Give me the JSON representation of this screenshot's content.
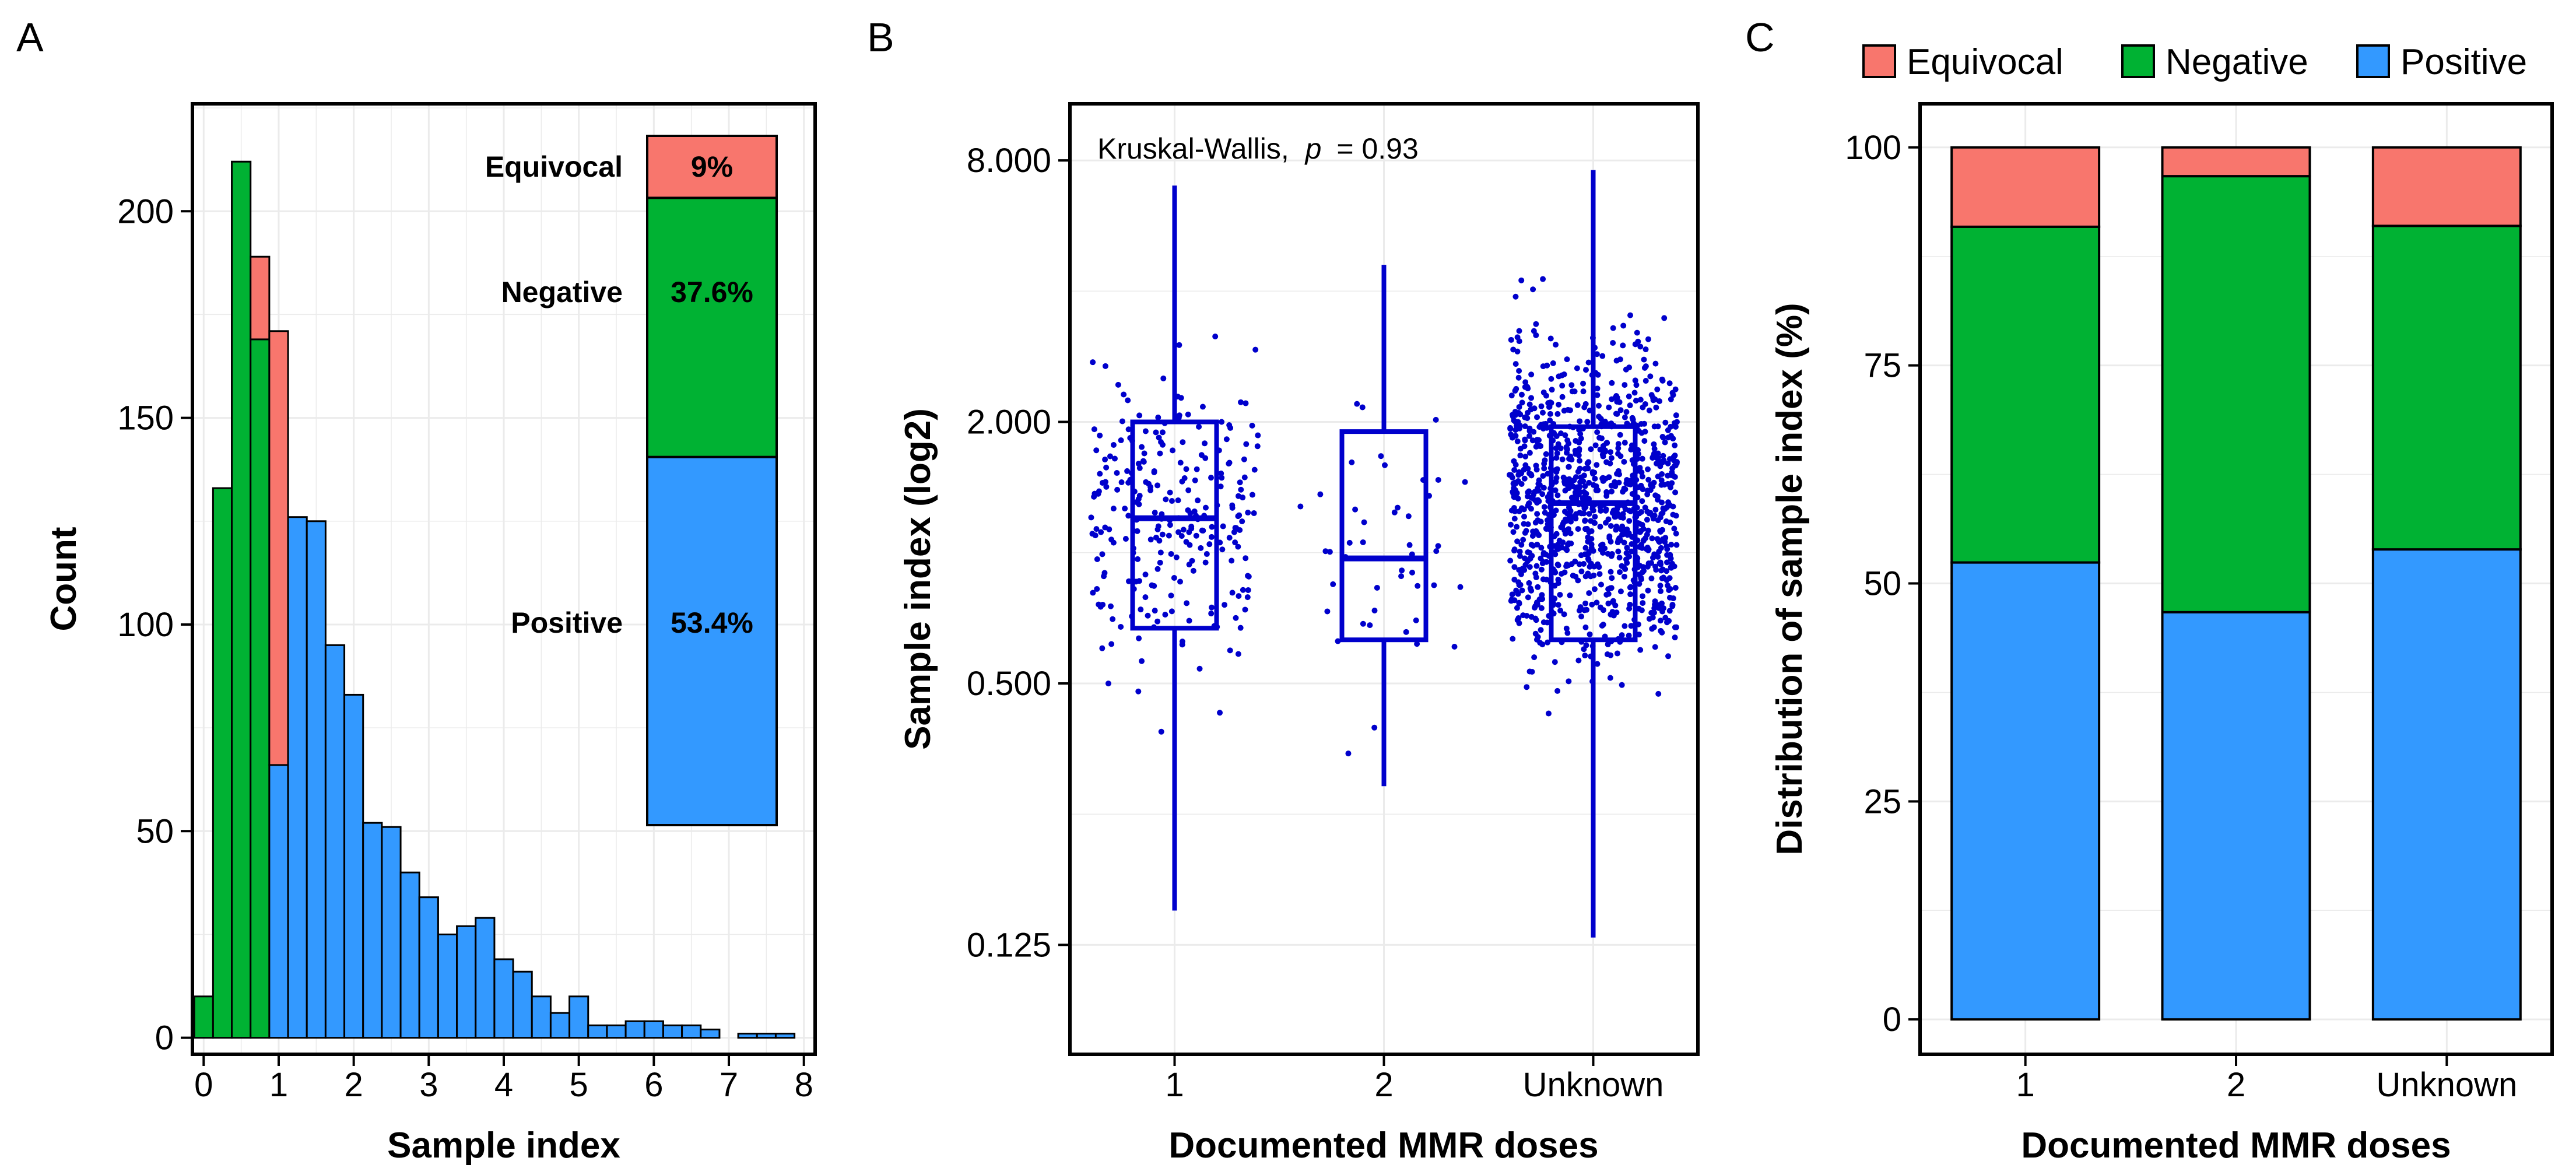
{
  "colors": {
    "equivocal": "#F8766D",
    "negative": "#00B233",
    "positive": "#3399FF",
    "scatter": "#0000CC",
    "grid": "#EBEBEB"
  },
  "panels": {
    "a": "A",
    "b": "B",
    "c": "C"
  },
  "chart_data": [
    {
      "type": "bar",
      "subtype": "stacked-histogram",
      "panel": "A",
      "xlabel": "Sample index",
      "ylabel": "Count",
      "xlim": [
        -0.15,
        8.15
      ],
      "ylim": [
        -4,
        226
      ],
      "xticks": [
        0,
        1,
        2,
        3,
        4,
        5,
        6,
        7,
        8
      ],
      "yticks": [
        0,
        50,
        100,
        150,
        200
      ],
      "bin_width": 0.25,
      "bars": [
        {
          "x0": -0.125,
          "x1": 0.125,
          "negative": 10,
          "equivocal": 0,
          "positive": 0
        },
        {
          "x0": 0.125,
          "x1": 0.375,
          "negative": 133,
          "equivocal": 0,
          "positive": 0
        },
        {
          "x0": 0.375,
          "x1": 0.625,
          "negative": 212,
          "equivocal": 0,
          "positive": 0
        },
        {
          "x0": 0.625,
          "x1": 0.875,
          "negative": 169,
          "equivocal": 20,
          "positive": 0
        },
        {
          "x0": 0.875,
          "x1": 1.125,
          "negative": 0,
          "equivocal": 105,
          "positive": 66
        },
        {
          "x0": 1.125,
          "x1": 1.375,
          "negative": 0,
          "equivocal": 0,
          "positive": 126
        },
        {
          "x0": 1.375,
          "x1": 1.625,
          "negative": 0,
          "equivocal": 0,
          "positive": 125
        },
        {
          "x0": 1.625,
          "x1": 1.875,
          "negative": 0,
          "equivocal": 0,
          "positive": 95
        },
        {
          "x0": 1.875,
          "x1": 2.125,
          "negative": 0,
          "equivocal": 0,
          "positive": 83
        },
        {
          "x0": 2.125,
          "x1": 2.375,
          "negative": 0,
          "equivocal": 0,
          "positive": 52
        },
        {
          "x0": 2.375,
          "x1": 2.625,
          "negative": 0,
          "equivocal": 0,
          "positive": 51
        },
        {
          "x0": 2.625,
          "x1": 2.875,
          "negative": 0,
          "equivocal": 0,
          "positive": 40
        },
        {
          "x0": 2.875,
          "x1": 3.125,
          "negative": 0,
          "equivocal": 0,
          "positive": 34
        },
        {
          "x0": 3.125,
          "x1": 3.375,
          "negative": 0,
          "equivocal": 0,
          "positive": 25
        },
        {
          "x0": 3.375,
          "x1": 3.625,
          "negative": 0,
          "equivocal": 0,
          "positive": 27
        },
        {
          "x0": 3.625,
          "x1": 3.875,
          "negative": 0,
          "equivocal": 0,
          "positive": 29
        },
        {
          "x0": 3.875,
          "x1": 4.125,
          "negative": 0,
          "equivocal": 0,
          "positive": 19
        },
        {
          "x0": 4.125,
          "x1": 4.375,
          "negative": 0,
          "equivocal": 0,
          "positive": 16
        },
        {
          "x0": 4.375,
          "x1": 4.625,
          "negative": 0,
          "equivocal": 0,
          "positive": 10
        },
        {
          "x0": 4.625,
          "x1": 4.875,
          "negative": 0,
          "equivocal": 0,
          "positive": 6
        },
        {
          "x0": 4.875,
          "x1": 5.125,
          "negative": 0,
          "equivocal": 0,
          "positive": 10
        },
        {
          "x0": 5.125,
          "x1": 5.375,
          "negative": 0,
          "equivocal": 0,
          "positive": 3
        },
        {
          "x0": 5.375,
          "x1": 5.625,
          "negative": 0,
          "equivocal": 0,
          "positive": 3
        },
        {
          "x0": 5.625,
          "x1": 5.875,
          "negative": 0,
          "equivocal": 0,
          "positive": 4
        },
        {
          "x0": 5.875,
          "x1": 6.125,
          "negative": 0,
          "equivocal": 0,
          "positive": 4
        },
        {
          "x0": 6.125,
          "x1": 6.375,
          "negative": 0,
          "equivocal": 0,
          "positive": 3
        },
        {
          "x0": 6.375,
          "x1": 6.625,
          "negative": 0,
          "equivocal": 0,
          "positive": 3
        },
        {
          "x0": 6.625,
          "x1": 6.875,
          "negative": 0,
          "equivocal": 0,
          "positive": 2
        },
        {
          "x0": 6.875,
          "x1": 7.125,
          "negative": 0,
          "equivocal": 0,
          "positive": 0
        },
        {
          "x0": 7.125,
          "x1": 7.375,
          "negative": 0,
          "equivocal": 0,
          "positive": 1
        },
        {
          "x0": 7.375,
          "x1": 7.625,
          "negative": 0,
          "equivocal": 0,
          "positive": 1
        },
        {
          "x0": 7.625,
          "x1": 7.875,
          "negative": 0,
          "equivocal": 0,
          "positive": 1
        }
      ],
      "inset": {
        "segments": [
          {
            "label": "Equivocal",
            "pct": "9%",
            "value": 9.0,
            "key": "equivocal"
          },
          {
            "label": "Negative",
            "pct": "37.6%",
            "value": 37.6,
            "key": "negative"
          },
          {
            "label": "Positive",
            "pct": "53.4%",
            "value": 53.4,
            "key": "positive"
          }
        ]
      }
    },
    {
      "type": "scatter",
      "subtype": "boxplot-with-jitter",
      "panel": "B",
      "xlabel": "Documented MMR doses",
      "ylabel": "Sample index (log2)",
      "categories": [
        "1",
        "2",
        "Unknown"
      ],
      "yscale": "log2",
      "ylim": [
        0.07,
        10.8
      ],
      "yticks": [
        0.125,
        0.5,
        2,
        8
      ],
      "ytick_labels": [
        "0.125",
        "0.500",
        "2.000",
        "8.000"
      ],
      "annotation": {
        "test": "Kruskal-Wallis,",
        "p_symbol": "p",
        "p_value": "= 0.93"
      },
      "boxes": [
        {
          "category": "1",
          "min": 0.15,
          "q1": 0.67,
          "median": 1.2,
          "q3": 2.0,
          "max": 7.0,
          "n": 260
        },
        {
          "category": "2",
          "min": 0.29,
          "q1": 0.63,
          "median": 0.97,
          "q3": 1.9,
          "max": 4.6,
          "n": 45
        },
        {
          "category": "Unknown",
          "min": 0.13,
          "q1": 0.63,
          "median": 1.3,
          "q3": 1.95,
          "max": 7.6,
          "n": 1100
        }
      ]
    },
    {
      "type": "bar",
      "subtype": "stacked-percent",
      "panel": "C",
      "xlabel": "Documented MMR doses",
      "ylabel": "Distribution of sample index (%)",
      "categories": [
        "1",
        "2",
        "Unknown"
      ],
      "ylim": [
        -4,
        105
      ],
      "yticks": [
        0,
        25,
        50,
        75,
        100
      ],
      "legend_position": "top",
      "legend": [
        "Equivocal",
        "Negative",
        "Positive"
      ],
      "series": [
        {
          "name": "Positive",
          "key": "positive",
          "values": [
            52.4,
            46.7,
            53.9
          ]
        },
        {
          "name": "Negative",
          "key": "negative",
          "values": [
            38.5,
            50.0,
            37.1
          ]
        },
        {
          "name": "Equivocal",
          "key": "equivocal",
          "values": [
            9.1,
            3.3,
            9.0
          ]
        }
      ]
    }
  ]
}
